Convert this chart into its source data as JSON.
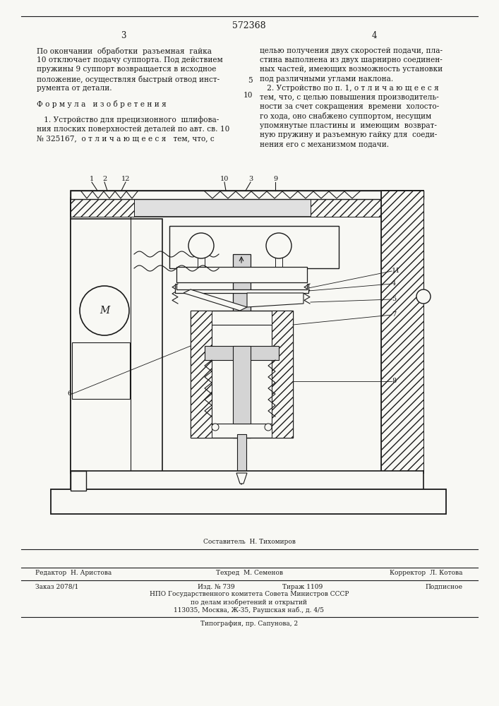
{
  "patent_number": "572368",
  "page_left": "3",
  "page_right": "4",
  "background_color": "#f8f8f4",
  "text_color": "#1a1a1a",
  "col1_text": [
    "По окончании  обработки  разъемная  гайка",
    "10 отключает подачу суппорта. Под действием",
    "пружины 9 суппорт возвращается в исходное",
    "положение, осуществляя быстрый отвод инст-",
    "румента от детали.",
    "",
    "Ф о р м у л а   и з о б р е т е н и я",
    "",
    "   1. Устройство для прецизионного  шлифова-",
    "ния плоских поверхностей деталей по авт. св. 10",
    "№ 325167,  о т л и ч а ю щ е е с я   тем, что, с"
  ],
  "col2_text_top": [
    "целью получения двух скоростей подачи, пла-",
    "стина выполнена из двух шарнирно соединен-",
    "ных частей, имеющих возможность установки",
    "под различными углами наклона."
  ],
  "col2_text_num5": "5",
  "col2_text_mid": [
    "   2. Устройство по п. 1, о т л и ч а ю щ е е с я",
    "тем, что, с целью повышения производитель-",
    "ности за счет сокращения  времени  холосто-",
    "го хода, оно снабжено суппортом, несущим",
    "упомянутые пластины и  имеющим  возврат-",
    "ную пружину и разъемную гайку для  соеди-",
    "нения его с механизмом подачи."
  ],
  "footer_sestavitel": "Составитель  Н. Тихомиров",
  "footer_redaktor": "Редактор  Н. Аристова",
  "footer_tehred": "Техред  М. Семенов",
  "footer_korrektor": "Корректор  Л. Котова",
  "footer_zakaz": "Заказ 2078/1",
  "footer_izd": "Изд. № 739",
  "footer_tirazh": "Тираж 1109",
  "footer_podpisnoe": "Подписное",
  "footer_npo": "НПО Государственного комитета Совета Министров СССР",
  "footer_po_delam": "по делам изобретений и открытий",
  "footer_address": "113035, Москва, Ж-35, Раушская наб., д. 4/5",
  "footer_tipografiya": "Типография, пр. Сапунова, 2"
}
